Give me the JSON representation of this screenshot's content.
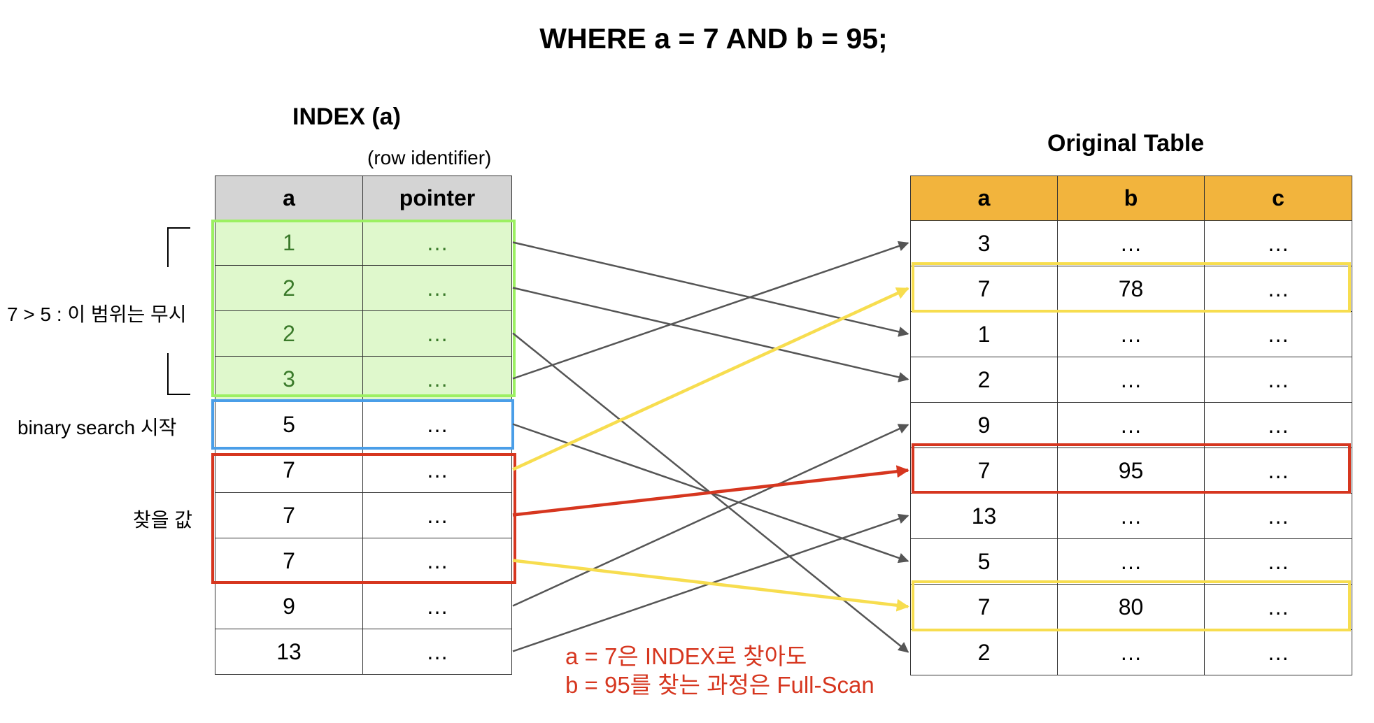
{
  "title": "WHERE a = 7 AND b = 95;",
  "index_table": {
    "title": "INDEX (a)",
    "subtitle": "(row identifier)",
    "headers": [
      "a",
      "pointer"
    ],
    "rows": [
      [
        "1",
        "…"
      ],
      [
        "2",
        "…"
      ],
      [
        "2",
        "…"
      ],
      [
        "3",
        "…"
      ],
      [
        "5",
        "…"
      ],
      [
        "7",
        "…"
      ],
      [
        "7",
        "…"
      ],
      [
        "7",
        "…"
      ],
      [
        "9",
        "…"
      ],
      [
        "13",
        "…"
      ]
    ]
  },
  "original_table": {
    "title": "Original Table",
    "headers": [
      "a",
      "b",
      "c"
    ],
    "rows": [
      [
        "3",
        "…",
        "…"
      ],
      [
        "7",
        "78",
        "…"
      ],
      [
        "1",
        "…",
        "…"
      ],
      [
        "2",
        "…",
        "…"
      ],
      [
        "9",
        "…",
        "…"
      ],
      [
        "7",
        "95",
        "…"
      ],
      [
        "13",
        "…",
        "…"
      ],
      [
        "5",
        "…",
        "…"
      ],
      [
        "7",
        "80",
        "…"
      ],
      [
        "2",
        "…",
        "…"
      ]
    ]
  },
  "annotations": {
    "skip_range": "7 > 5 : 이 범위는 무시",
    "binary_start": "binary search 시작",
    "target": "찾을 값",
    "fullscan_line1": "a = 7은 INDEX로 찾아도",
    "fullscan_line2": "b = 95를 찾는 과정은 Full-Scan"
  },
  "colors": {
    "skip_fill": "#dff8cc",
    "skip_border": "#9cf062",
    "binary_border": "#4a9ee8",
    "target_border": "#d6361f",
    "candidate_border": "#f7dd4f",
    "orig_header": "#f2b43d",
    "index_header": "#d4d4d4",
    "pointer_arrow": "#555555"
  },
  "pointer_map": [
    {
      "from": 0,
      "to": 2,
      "style": "gray"
    },
    {
      "from": 1,
      "to": 3,
      "style": "gray"
    },
    {
      "from": 2,
      "to": 9,
      "style": "gray"
    },
    {
      "from": 3,
      "to": 0,
      "style": "gray"
    },
    {
      "from": 4,
      "to": 7,
      "style": "gray"
    },
    {
      "from": 5,
      "to": 1,
      "style": "yellow"
    },
    {
      "from": 6,
      "to": 5,
      "style": "red"
    },
    {
      "from": 7,
      "to": 8,
      "style": "yellow"
    },
    {
      "from": 8,
      "to": 4,
      "style": "gray"
    },
    {
      "from": 9,
      "to": 6,
      "style": "gray"
    }
  ]
}
